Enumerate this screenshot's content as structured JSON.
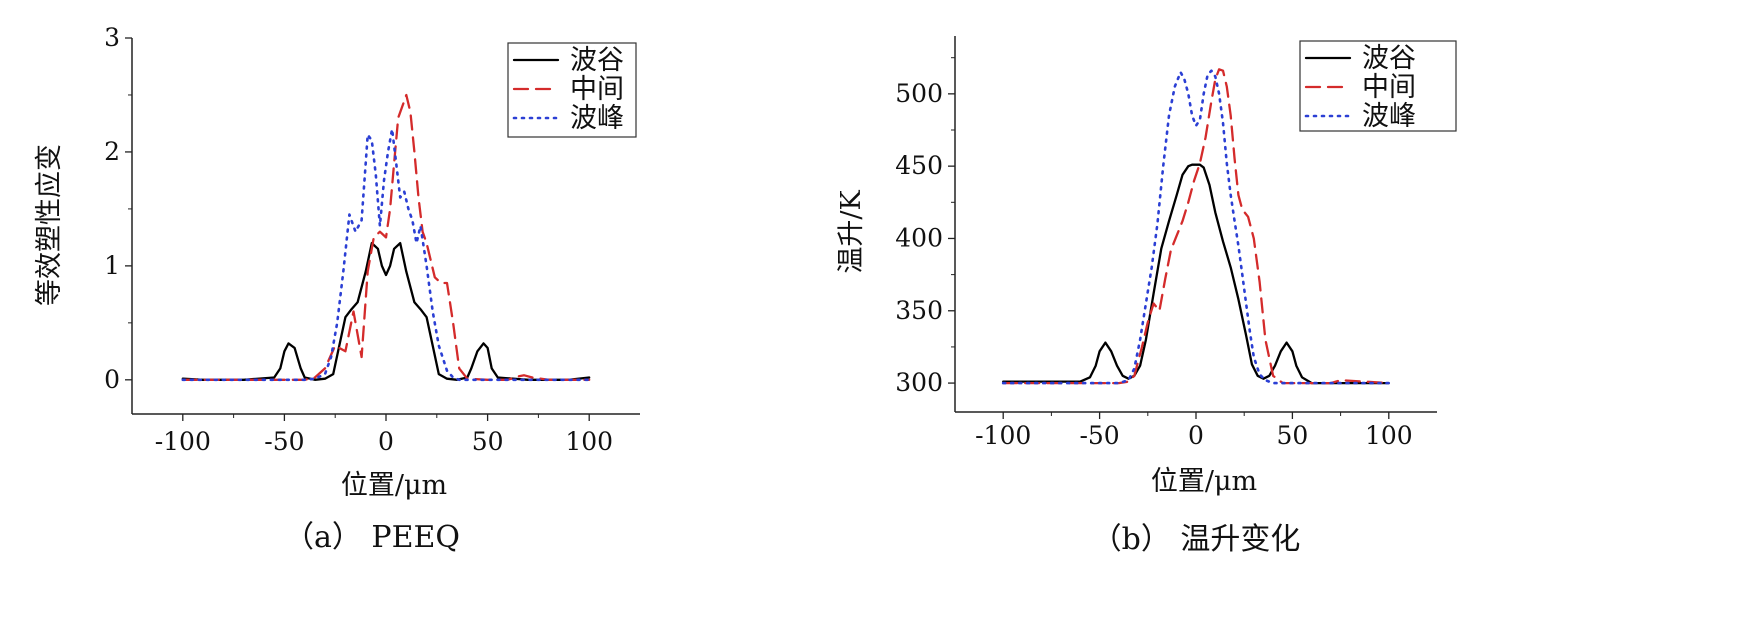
{
  "chart_data": [
    {
      "type": "line",
      "caption": "（a） PEEQ",
      "xlabel": "位置/μm",
      "ylabel": "等效塑性应变",
      "xlim": [
        -125,
        125
      ],
      "ylim": [
        -0.3,
        3.0
      ],
      "xticks": [
        "-100",
        "-50",
        "0",
        "50",
        "100"
      ],
      "xtick_values": [
        -100,
        -50,
        0,
        50,
        100
      ],
      "yticks": [
        "0",
        "1",
        "2",
        "3"
      ],
      "ytick_values": [
        0,
        1,
        2,
        3
      ],
      "legend_position": "top-right",
      "grid": false,
      "series": [
        {
          "name": "波谷",
          "color": "#000000",
          "style": "solid",
          "x": [
            -100,
            -90,
            -70,
            -55,
            -52,
            -50,
            -48,
            -45,
            -42,
            -40,
            -35,
            -30,
            -26,
            -23,
            -20,
            -17,
            -14,
            -10,
            -7,
            -4,
            -2,
            0,
            2,
            4,
            7,
            10,
            14,
            17,
            20,
            23,
            26,
            30,
            35,
            40,
            42,
            45,
            48,
            50,
            52,
            55,
            70,
            90,
            100
          ],
          "y": [
            0.01,
            0.0,
            0.0,
            0.02,
            0.1,
            0.25,
            0.32,
            0.28,
            0.1,
            0.02,
            0.0,
            0.01,
            0.05,
            0.3,
            0.55,
            0.62,
            0.68,
            0.95,
            1.2,
            1.15,
            1.0,
            0.92,
            1.0,
            1.15,
            1.2,
            0.95,
            0.68,
            0.62,
            0.55,
            0.3,
            0.05,
            0.01,
            0.0,
            0.02,
            0.1,
            0.25,
            0.32,
            0.28,
            0.1,
            0.02,
            0.0,
            0.0,
            0.02
          ]
        },
        {
          "name": "中间",
          "color": "#d42b2b",
          "style": "dashed",
          "x": [
            -100,
            -40,
            -35,
            -30,
            -25,
            -20,
            -16,
            -12,
            -9,
            -6,
            -3,
            0,
            2,
            4,
            6,
            8,
            10,
            12,
            14,
            16,
            18,
            20,
            24,
            27,
            30,
            33,
            36,
            40,
            50,
            60,
            65,
            68,
            72,
            80,
            100
          ],
          "y": [
            0.0,
            0.0,
            0.02,
            0.1,
            0.3,
            0.25,
            0.6,
            0.2,
            0.95,
            1.25,
            1.3,
            1.25,
            1.5,
            1.9,
            2.3,
            2.4,
            2.5,
            2.35,
            2.0,
            1.6,
            1.3,
            1.2,
            0.9,
            0.85,
            0.85,
            0.5,
            0.1,
            0.01,
            0.0,
            0.0,
            0.03,
            0.04,
            0.02,
            0.0,
            0.0
          ]
        },
        {
          "name": "波峰",
          "color": "#2b3fd4",
          "style": "dotted",
          "x": [
            -100,
            -40,
            -35,
            -30,
            -27,
            -24,
            -21,
            -18,
            -15,
            -12,
            -10,
            -9,
            -7,
            -5,
            -3,
            -1,
            1,
            3,
            5,
            7,
            9,
            11,
            13,
            15,
            17,
            20,
            23,
            26,
            30,
            33,
            36,
            40,
            50,
            100
          ],
          "y": [
            0.0,
            0.0,
            0.01,
            0.05,
            0.2,
            0.5,
            0.95,
            1.45,
            1.3,
            1.4,
            1.9,
            2.15,
            2.1,
            1.8,
            1.35,
            1.75,
            2.0,
            2.2,
            1.9,
            1.6,
            1.65,
            1.5,
            1.4,
            1.2,
            1.35,
            1.0,
            0.6,
            0.3,
            0.08,
            0.02,
            0.0,
            0.0,
            0.0,
            0.0
          ]
        }
      ]
    },
    {
      "type": "line",
      "caption": "（b） 温升变化",
      "xlabel": "位置/μm",
      "ylabel": "温升/K",
      "xlim": [
        -125,
        125
      ],
      "ylim": [
        280,
        540
      ],
      "xticks": [
        "-100",
        "-50",
        "0",
        "50",
        "100"
      ],
      "xtick_values": [
        -100,
        -50,
        0,
        50,
        100
      ],
      "yticks": [
        "300",
        "350",
        "400",
        "450",
        "500"
      ],
      "ytick_values": [
        300,
        350,
        400,
        450,
        500
      ],
      "legend_position": "top-right",
      "grid": false,
      "series": [
        {
          "name": "波谷",
          "color": "#000000",
          "style": "solid",
          "x": [
            -100,
            -60,
            -55,
            -52,
            -50,
            -47,
            -44,
            -41,
            -38,
            -35,
            -32,
            -29,
            -26,
            -22,
            -18,
            -14,
            -10,
            -7,
            -4,
            -2,
            0,
            2,
            4,
            7,
            10,
            14,
            18,
            22,
            26,
            29,
            32,
            35,
            38,
            41,
            44,
            47,
            50,
            52,
            55,
            60,
            100
          ],
          "y": [
            301,
            301,
            304,
            312,
            322,
            328,
            322,
            312,
            305,
            303,
            305,
            312,
            330,
            362,
            393,
            412,
            430,
            444,
            450,
            451,
            451,
            451,
            449,
            437,
            418,
            398,
            380,
            358,
            333,
            313,
            305,
            303,
            305,
            312,
            322,
            328,
            322,
            312,
            304,
            300,
            300
          ]
        },
        {
          "name": "中间",
          "color": "#d42b2b",
          "style": "dashed",
          "x": [
            -100,
            -40,
            -35,
            -32,
            -28,
            -25,
            -22,
            -19,
            -16,
            -13,
            -10,
            -7,
            -4,
            -1,
            2,
            5,
            8,
            10,
            12,
            14,
            16,
            18,
            20,
            22,
            24,
            27,
            30,
            33,
            36,
            40,
            45,
            50,
            60,
            70,
            75,
            100
          ],
          "y": [
            300,
            300,
            301,
            305,
            325,
            342,
            355,
            350,
            372,
            392,
            402,
            412,
            425,
            440,
            452,
            470,
            495,
            510,
            517,
            516,
            505,
            485,
            455,
            430,
            420,
            415,
            400,
            370,
            330,
            305,
            300,
            300,
            300,
            300,
            302,
            300
          ]
        },
        {
          "name": "波峰",
          "color": "#2b3fd4",
          "style": "dotted",
          "x": [
            -100,
            -40,
            -35,
            -32,
            -29,
            -26,
            -23,
            -20,
            -17,
            -14,
            -11,
            -8,
            -6,
            -4,
            -2,
            0,
            2,
            4,
            6,
            8,
            10,
            12,
            14,
            16,
            18,
            20,
            22,
            24,
            26,
            28,
            30,
            33,
            36,
            40,
            50,
            100
          ],
          "y": [
            300,
            300,
            302,
            310,
            330,
            355,
            380,
            410,
            450,
            485,
            505,
            515,
            510,
            500,
            485,
            478,
            482,
            500,
            513,
            516,
            512,
            500,
            480,
            452,
            430,
            412,
            395,
            375,
            355,
            335,
            318,
            306,
            302,
            300,
            300,
            300
          ]
        }
      ]
    }
  ]
}
